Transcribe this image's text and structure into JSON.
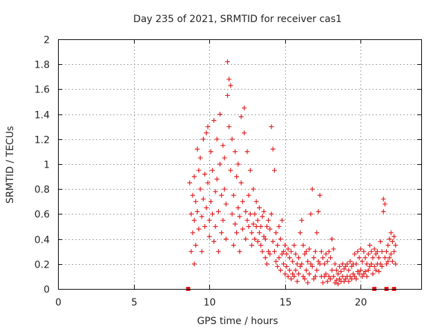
{
  "chart_data": {
    "type": "scatter",
    "title": "Day 235 of 2021, SRMTID for receiver cas1",
    "xlabel": "GPS time / hours",
    "ylabel": "SRMTID / TECUs",
    "xlim": [
      0,
      24
    ],
    "ylim": [
      0,
      2
    ],
    "xticks": [
      "0",
      "5",
      "10",
      "15",
      "20"
    ],
    "xtick_values": [
      0,
      5,
      10,
      15,
      20
    ],
    "yticks": [
      "0",
      "0.2",
      "0.4",
      "0.6",
      "0.8",
      "1",
      "1.2",
      "1.4",
      "1.6",
      "1.8",
      "2"
    ],
    "ytick_values": [
      0,
      0.2,
      0.4,
      0.6,
      0.8,
      1.0,
      1.2,
      1.4,
      1.6,
      1.8,
      2.0
    ],
    "grid": true,
    "marker": "plus",
    "color": "#e41a1c",
    "series": [
      {
        "name": "SRMTID",
        "points": [
          [
            8.7,
            0.85
          ],
          [
            8.8,
            0.6
          ],
          [
            8.8,
            0.3
          ],
          [
            8.9,
            0.75
          ],
          [
            8.9,
            0.45
          ],
          [
            9.0,
            0.9
          ],
          [
            9.0,
            0.55
          ],
          [
            9.0,
            0.2
          ],
          [
            9.1,
            0.7
          ],
          [
            9.1,
            0.35
          ],
          [
            9.2,
            1.12
          ],
          [
            9.2,
            0.62
          ],
          [
            9.3,
            0.95
          ],
          [
            9.3,
            0.48
          ],
          [
            9.4,
            1.05
          ],
          [
            9.4,
            0.8
          ],
          [
            9.5,
            0.58
          ],
          [
            9.5,
            0.3
          ],
          [
            9.6,
            1.2
          ],
          [
            9.6,
            0.72
          ],
          [
            9.7,
            0.92
          ],
          [
            9.7,
            0.5
          ],
          [
            9.8,
            1.25
          ],
          [
            9.8,
            0.65
          ],
          [
            9.9,
            1.3
          ],
          [
            9.9,
            0.85
          ],
          [
            10.0,
            0.55
          ],
          [
            10.0,
            0.42
          ],
          [
            10.1,
            1.1
          ],
          [
            10.1,
            0.7
          ],
          [
            10.2,
            0.95
          ],
          [
            10.2,
            0.6
          ],
          [
            10.3,
            1.35
          ],
          [
            10.3,
            0.38
          ],
          [
            10.4,
            0.78
          ],
          [
            10.4,
            0.5
          ],
          [
            10.5,
            1.2
          ],
          [
            10.5,
            0.88
          ],
          [
            10.6,
            0.62
          ],
          [
            10.6,
            0.3
          ],
          [
            10.7,
            1.4
          ],
          [
            10.7,
            1.0
          ],
          [
            10.8,
            0.75
          ],
          [
            10.8,
            0.45
          ],
          [
            10.9,
            1.15
          ],
          [
            10.9,
            0.55
          ],
          [
            11.0,
            1.05
          ],
          [
            11.0,
            0.8
          ],
          [
            11.1,
            0.68
          ],
          [
            11.1,
            0.4
          ],
          [
            11.2,
            1.82
          ],
          [
            11.2,
            1.55
          ],
          [
            11.3,
            1.68
          ],
          [
            11.3,
            1.3
          ],
          [
            11.4,
            1.63
          ],
          [
            11.4,
            0.95
          ],
          [
            11.5,
            1.2
          ],
          [
            11.5,
            0.6
          ],
          [
            11.6,
            0.75
          ],
          [
            11.6,
            0.35
          ],
          [
            11.7,
            1.1
          ],
          [
            11.7,
            0.52
          ],
          [
            11.8,
            0.9
          ],
          [
            11.8,
            0.45
          ],
          [
            11.9,
            1.0
          ],
          [
            11.9,
            0.65
          ],
          [
            12.0,
            0.58
          ],
          [
            12.0,
            0.3
          ],
          [
            12.1,
            1.38
          ],
          [
            12.1,
            0.85
          ],
          [
            12.2,
            0.7
          ],
          [
            12.2,
            0.48
          ],
          [
            12.3,
            1.45
          ],
          [
            12.3,
            1.25
          ],
          [
            12.4,
            0.62
          ],
          [
            12.4,
            0.4
          ],
          [
            12.5,
            1.1
          ],
          [
            12.5,
            0.55
          ],
          [
            12.6,
            0.75
          ],
          [
            12.6,
            0.5
          ],
          [
            12.7,
            0.95
          ],
          [
            12.7,
            0.6
          ],
          [
            12.8,
            0.45
          ],
          [
            12.8,
            0.35
          ],
          [
            12.9,
            0.8
          ],
          [
            12.9,
            0.52
          ],
          [
            13.0,
            0.6
          ],
          [
            13.0,
            0.4
          ],
          [
            13.1,
            0.7
          ],
          [
            13.1,
            0.5
          ],
          [
            13.2,
            0.55
          ],
          [
            13.2,
            0.38
          ],
          [
            13.3,
            0.65
          ],
          [
            13.3,
            0.45
          ],
          [
            13.4,
            0.5
          ],
          [
            13.4,
            0.35
          ],
          [
            13.5,
            0.58
          ],
          [
            13.5,
            0.3
          ],
          [
            13.6,
            0.62
          ],
          [
            13.6,
            0.42
          ],
          [
            13.7,
            0.4
          ],
          [
            13.7,
            0.25
          ],
          [
            13.8,
            0.5
          ],
          [
            13.8,
            0.2
          ],
          [
            13.9,
            0.55
          ],
          [
            13.9,
            0.3
          ],
          [
            14.0,
            0.48
          ],
          [
            14.0,
            0.28
          ],
          [
            14.1,
            1.3
          ],
          [
            14.1,
            0.6
          ],
          [
            14.2,
            1.12
          ],
          [
            14.2,
            0.38
          ],
          [
            14.3,
            0.95
          ],
          [
            14.3,
            0.3
          ],
          [
            14.4,
            0.45
          ],
          [
            14.4,
            0.22
          ],
          [
            14.5,
            0.35
          ],
          [
            14.5,
            0.18
          ],
          [
            14.6,
            0.5
          ],
          [
            14.6,
            0.25
          ],
          [
            14.7,
            0.4
          ],
          [
            14.7,
            0.15
          ],
          [
            14.8,
            0.55
          ],
          [
            14.8,
            0.28
          ],
          [
            14.9,
            0.3
          ],
          [
            14.9,
            0.2
          ],
          [
            15.0,
            0.35
          ],
          [
            15.0,
            0.12
          ],
          [
            15.1,
            0.28
          ],
          [
            15.1,
            0.18
          ],
          [
            15.2,
            0.32
          ],
          [
            15.2,
            0.1
          ],
          [
            15.3,
            0.25
          ],
          [
            15.3,
            0.15
          ],
          [
            15.4,
            0.3
          ],
          [
            15.4,
            0.08
          ],
          [
            15.5,
            0.22
          ],
          [
            15.5,
            0.12
          ],
          [
            15.6,
            0.35
          ],
          [
            15.6,
            0.1
          ],
          [
            15.7,
            0.28
          ],
          [
            15.7,
            0.15
          ],
          [
            15.8,
            0.2
          ],
          [
            15.8,
            0.06
          ],
          [
            15.9,
            0.25
          ],
          [
            15.9,
            0.12
          ],
          [
            16.0,
            0.45
          ],
          [
            16.0,
            0.18
          ],
          [
            16.1,
            0.55
          ],
          [
            16.1,
            0.2
          ],
          [
            16.2,
            0.35
          ],
          [
            16.2,
            0.1
          ],
          [
            16.3,
            0.28
          ],
          [
            16.3,
            0.08
          ],
          [
            16.4,
            0.3
          ],
          [
            16.4,
            0.15
          ],
          [
            16.5,
            0.22
          ],
          [
            16.5,
            0.05
          ],
          [
            16.6,
            0.32
          ],
          [
            16.6,
            0.12
          ],
          [
            16.7,
            0.6
          ],
          [
            16.7,
            0.2
          ],
          [
            16.8,
            0.8
          ],
          [
            16.8,
            0.18
          ],
          [
            16.9,
            0.25
          ],
          [
            16.9,
            0.08
          ],
          [
            17.0,
            0.3
          ],
          [
            17.0,
            0.1
          ],
          [
            17.1,
            0.45
          ],
          [
            17.1,
            0.15
          ],
          [
            17.2,
            0.62
          ],
          [
            17.2,
            0.22
          ],
          [
            17.3,
            0.75
          ],
          [
            17.3,
            0.2
          ],
          [
            17.4,
            0.3
          ],
          [
            17.4,
            0.1
          ],
          [
            17.5,
            0.25
          ],
          [
            17.5,
            0.05
          ],
          [
            17.6,
            0.2
          ],
          [
            17.6,
            0.1
          ],
          [
            17.7,
            0.28
          ],
          [
            17.7,
            0.12
          ],
          [
            17.8,
            0.22
          ],
          [
            17.8,
            0.06
          ],
          [
            17.9,
            0.3
          ],
          [
            17.9,
            0.1
          ],
          [
            18.0,
            0.25
          ],
          [
            18.0,
            0.08
          ],
          [
            18.1,
            0.4
          ],
          [
            18.1,
            0.15
          ],
          [
            18.2,
            0.32
          ],
          [
            18.2,
            0.1
          ],
          [
            18.3,
            0.2
          ],
          [
            18.3,
            0.05
          ],
          [
            18.4,
            0.15
          ],
          [
            18.4,
            0.07
          ],
          [
            18.5,
            0.12
          ],
          [
            18.5,
            0.04
          ],
          [
            18.6,
            0.18
          ],
          [
            18.6,
            0.08
          ],
          [
            18.7,
            0.14
          ],
          [
            18.7,
            0.06
          ],
          [
            18.8,
            0.2
          ],
          [
            18.8,
            0.1
          ],
          [
            18.9,
            0.16
          ],
          [
            18.9,
            0.06
          ],
          [
            19.0,
            0.18
          ],
          [
            19.0,
            0.08
          ],
          [
            19.1,
            0.2
          ],
          [
            19.1,
            0.1
          ],
          [
            19.2,
            0.15
          ],
          [
            19.2,
            0.06
          ],
          [
            19.3,
            0.22
          ],
          [
            19.3,
            0.1
          ],
          [
            19.4,
            0.18
          ],
          [
            19.4,
            0.08
          ],
          [
            19.5,
            0.2
          ],
          [
            19.5,
            0.12
          ],
          [
            19.6,
            0.28
          ],
          [
            19.6,
            0.1
          ],
          [
            19.7,
            0.2
          ],
          [
            19.7,
            0.08
          ],
          [
            19.8,
            0.3
          ],
          [
            19.8,
            0.14
          ],
          [
            19.9,
            0.25
          ],
          [
            19.9,
            0.12
          ],
          [
            20.0,
            0.32
          ],
          [
            20.0,
            0.15
          ],
          [
            20.1,
            0.22
          ],
          [
            20.1,
            0.1
          ],
          [
            20.2,
            0.3
          ],
          [
            20.2,
            0.12
          ],
          [
            20.3,
            0.25
          ],
          [
            20.3,
            0.14
          ],
          [
            20.4,
            0.2
          ],
          [
            20.4,
            0.1
          ],
          [
            20.5,
            0.28
          ],
          [
            20.5,
            0.15
          ],
          [
            20.6,
            0.35
          ],
          [
            20.6,
            0.18
          ],
          [
            20.7,
            0.3
          ],
          [
            20.7,
            0.2
          ],
          [
            20.8,
            0.25
          ],
          [
            20.8,
            0.12
          ],
          [
            20.9,
            0.32
          ],
          [
            20.9,
            0.18
          ],
          [
            21.0,
            0.28
          ],
          [
            21.0,
            0.15
          ],
          [
            21.1,
            0.3
          ],
          [
            21.1,
            0.2
          ],
          [
            21.2,
            0.25
          ],
          [
            21.2,
            0.14
          ],
          [
            21.3,
            0.38
          ],
          [
            21.3,
            0.2
          ],
          [
            21.4,
            0.3
          ],
          [
            21.4,
            0.18
          ],
          [
            21.5,
            0.72
          ],
          [
            21.5,
            0.62
          ],
          [
            21.6,
            0.68
          ],
          [
            21.6,
            0.25
          ],
          [
            21.7,
            0.3
          ],
          [
            21.7,
            0.2
          ],
          [
            21.8,
            0.35
          ],
          [
            21.8,
            0.22
          ],
          [
            21.9,
            0.4
          ],
          [
            21.9,
            0.25
          ],
          [
            22.0,
            0.45
          ],
          [
            22.0,
            0.28
          ],
          [
            22.1,
            0.38
          ],
          [
            22.1,
            0.22
          ],
          [
            22.2,
            0.42
          ],
          [
            22.2,
            0.3
          ],
          [
            22.3,
            0.35
          ],
          [
            22.3,
            0.2
          ]
        ]
      }
    ],
    "baseline_markers": {
      "name": "data gap markers",
      "y": 0,
      "x": [
        8.6,
        20.9,
        21.7,
        22.2
      ]
    }
  }
}
